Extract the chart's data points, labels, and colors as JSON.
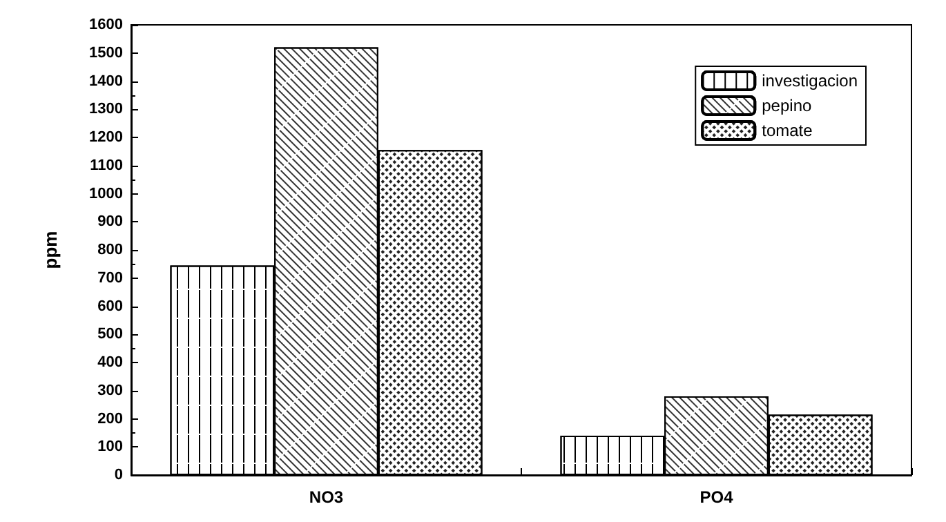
{
  "chart_data": {
    "type": "bar",
    "ylabel": "ppm",
    "categories": [
      "NO3",
      "PO4"
    ],
    "series": [
      {
        "name": "investigacion",
        "color": "#ffffff",
        "values": [
          745,
          140
        ]
      },
      {
        "name": "pepino",
        "color": "#ffffff",
        "values": [
          1520,
          280
        ]
      },
      {
        "name": "tomate",
        "color": "#ffffff",
        "values": [
          1155,
          215
        ]
      }
    ],
    "ylim": [
      0,
      1600
    ],
    "yticks": [
      0,
      100,
      200,
      300,
      400,
      500,
      600,
      700,
      800,
      900,
      1000,
      1100,
      1200,
      1300,
      1400,
      1500,
      1600
    ],
    "grid": false,
    "legend": "top right"
  }
}
